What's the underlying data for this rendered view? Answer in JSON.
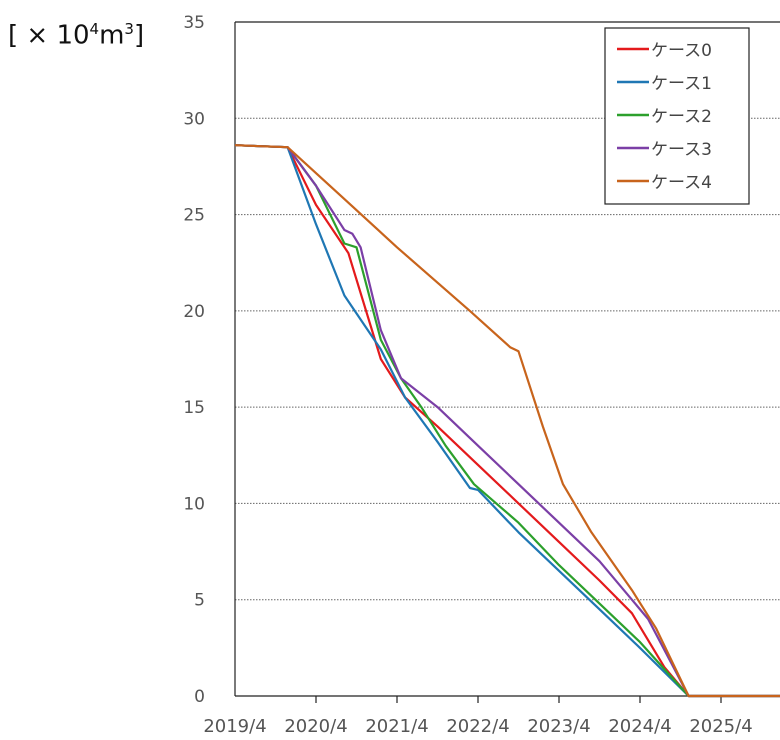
{
  "chart_data": {
    "type": "line",
    "unit_label": {
      "prefix": "[ × 10",
      "exp": "4",
      "mid": "m",
      "exp2": "3",
      "suffix": "]"
    },
    "title": "",
    "xlabel": "",
    "ylabel": "[ × 10⁴m³]",
    "x_tick_labels": [
      "2019/4",
      "2020/4",
      "2021/4",
      "2022/4",
      "2023/4",
      "2024/4",
      "2025/4"
    ],
    "x_range_years": [
      0,
      6.8
    ],
    "y_ticks": [
      0,
      5,
      10,
      15,
      20,
      25,
      30,
      35
    ],
    "ylim": [
      0,
      35
    ],
    "grid": "horizontal dotted",
    "legend_position": "top-right",
    "series": [
      {
        "name": "ケース0",
        "color": "#e41a1c",
        "points": [
          [
            0,
            28.6
          ],
          [
            0.65,
            28.5
          ],
          [
            1.0,
            25.5
          ],
          [
            1.4,
            23.0
          ],
          [
            1.8,
            17.5
          ],
          [
            2.1,
            15.5
          ],
          [
            2.5,
            14.0
          ],
          [
            3.0,
            12.0
          ],
          [
            3.5,
            10.0
          ],
          [
            4.0,
            8.0
          ],
          [
            4.5,
            6.0
          ],
          [
            4.9,
            4.3
          ],
          [
            5.3,
            1.5
          ],
          [
            5.6,
            0
          ],
          [
            6.8,
            0
          ]
        ]
      },
      {
        "name": "ケース1",
        "color": "#1f77b4",
        "points": [
          [
            0,
            28.6
          ],
          [
            0.65,
            28.5
          ],
          [
            1.0,
            24.5
          ],
          [
            1.35,
            20.8
          ],
          [
            1.8,
            18.0
          ],
          [
            2.1,
            15.5
          ],
          [
            2.5,
            13.2
          ],
          [
            2.9,
            10.8
          ],
          [
            3.0,
            10.7
          ],
          [
            3.5,
            8.5
          ],
          [
            4.0,
            6.5
          ],
          [
            4.5,
            4.5
          ],
          [
            5.0,
            2.5
          ],
          [
            5.6,
            0
          ],
          [
            6.8,
            0
          ]
        ]
      },
      {
        "name": "ケース2",
        "color": "#2ca02c",
        "points": [
          [
            0,
            28.6
          ],
          [
            0.65,
            28.5
          ],
          [
            1.0,
            26.5
          ],
          [
            1.35,
            23.5
          ],
          [
            1.5,
            23.3
          ],
          [
            1.8,
            18.5
          ],
          [
            2.05,
            16.5
          ],
          [
            2.3,
            15.0
          ],
          [
            2.6,
            13.0
          ],
          [
            2.95,
            11.0
          ],
          [
            3.5,
            9.0
          ],
          [
            4.0,
            6.8
          ],
          [
            4.5,
            4.8
          ],
          [
            5.0,
            2.8
          ],
          [
            5.6,
            0
          ],
          [
            6.8,
            0
          ]
        ]
      },
      {
        "name": "ケース3",
        "color": "#7b3fa6",
        "points": [
          [
            0,
            28.6
          ],
          [
            0.65,
            28.5
          ],
          [
            1.0,
            26.5
          ],
          [
            1.35,
            24.2
          ],
          [
            1.45,
            24.0
          ],
          [
            1.55,
            23.3
          ],
          [
            1.8,
            19.0
          ],
          [
            2.05,
            16.5
          ],
          [
            2.5,
            15.0
          ],
          [
            3.0,
            13.0
          ],
          [
            3.5,
            11.0
          ],
          [
            4.0,
            9.0
          ],
          [
            4.5,
            7.0
          ],
          [
            4.9,
            5.0
          ],
          [
            5.1,
            4.0
          ],
          [
            5.6,
            0
          ],
          [
            6.8,
            0
          ]
        ]
      },
      {
        "name": "ケース4",
        "color": "#c8641c",
        "points": [
          [
            0,
            28.6
          ],
          [
            0.65,
            28.5
          ],
          [
            1.3,
            26.0
          ],
          [
            2.0,
            23.3
          ],
          [
            2.9,
            20.0
          ],
          [
            3.4,
            18.1
          ],
          [
            3.5,
            17.9
          ],
          [
            3.8,
            14.0
          ],
          [
            4.05,
            11.0
          ],
          [
            4.4,
            8.5
          ],
          [
            4.9,
            5.5
          ],
          [
            5.2,
            3.5
          ],
          [
            5.6,
            0
          ],
          [
            6.8,
            0
          ]
        ]
      }
    ]
  }
}
